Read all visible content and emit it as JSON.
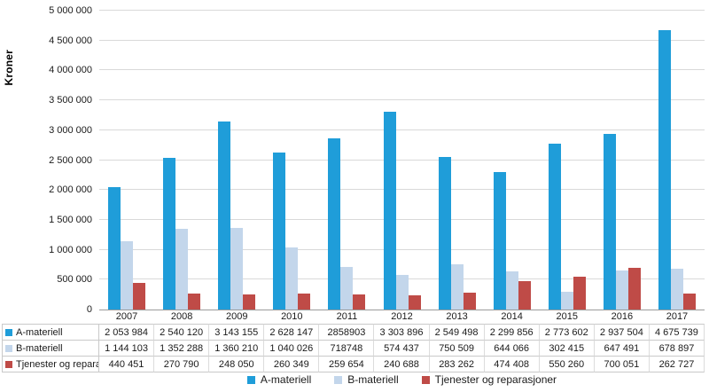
{
  "chart_data": {
    "type": "bar",
    "title": "",
    "xlabel": "",
    "ylabel": "Kroner",
    "ylim": [
      0,
      5000000
    ],
    "y_tick_step": 500000,
    "y_tick_labels_top_to_bottom": [
      "5 000 000",
      "4 500 000",
      "4 000 000",
      "3 500 000",
      "3 000 000",
      "2 500 000",
      "2 000 000",
      "1 500 000",
      "1 000 000",
      "500 000",
      "0"
    ],
    "categories": [
      "2007",
      "2008",
      "2009",
      "2010",
      "2011",
      "2012",
      "2013",
      "2014",
      "2015",
      "2016",
      "2017"
    ],
    "grid": true,
    "legend_position": "bottom",
    "series": [
      {
        "name": "A-materiell",
        "color": "#1f9dd9",
        "values": [
          2053984,
          2540120,
          3143155,
          2628147,
          2858903,
          3303896,
          2549498,
          2299856,
          2773602,
          2937504,
          4675739
        ],
        "display": [
          "2 053 984",
          "2 540 120",
          "3 143 155",
          "2 628 147",
          "2858903",
          "3 303 896",
          "2 549 498",
          "2 299 856",
          "2 773 602",
          "2 937 504",
          "4 675 739"
        ]
      },
      {
        "name": "B-materiell",
        "color": "#c3d6eb",
        "values": [
          1144103,
          1352288,
          1360210,
          1040026,
          718748,
          574437,
          750509,
          644066,
          302415,
          647491,
          678897
        ],
        "display": [
          "1 144 103",
          "1 352 288",
          "1 360 210",
          "1 040 026",
          "718748",
          "574 437",
          "750 509",
          "644 066",
          "302 415",
          "647 491",
          "678 897"
        ]
      },
      {
        "name": "Tjenester og reparasjoner",
        "color": "#bf4b47",
        "values": [
          440451,
          270790,
          248050,
          260349,
          259654,
          240688,
          283262,
          474408,
          550260,
          700051,
          262727
        ],
        "display": [
          "440 451",
          "270 790",
          "248 050",
          "260 349",
          "259 654",
          "240 688",
          "283 262",
          "474 408",
          "550 260",
          "700 051",
          "262 727"
        ]
      }
    ]
  }
}
